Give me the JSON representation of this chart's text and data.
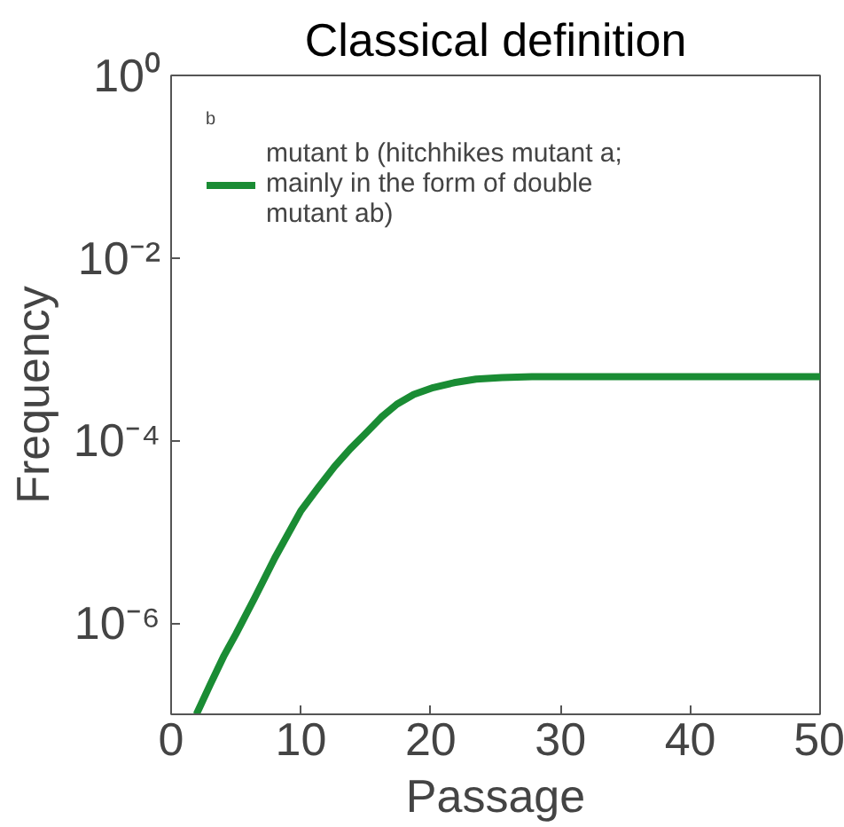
{
  "chart_data": {
    "type": "line",
    "title": "Classical definition",
    "xlabel": "Passage",
    "ylabel": "Frequency",
    "legend_title": "b",
    "log": "y",
    "legend": "top left",
    "xlim": [
      0,
      50
    ],
    "xticks": [
      0,
      10,
      20,
      30,
      40,
      50
    ],
    "ylim": [
      1e-07,
      1
    ],
    "yticks": [
      {
        "value": 1,
        "label": "10⁰"
      },
      {
        "value": 0.01,
        "label": "10⁻²"
      },
      {
        "value": 0.0001,
        "label": "10⁻⁴"
      },
      {
        "value": 1e-06,
        "label": "10⁻⁶"
      }
    ],
    "series": [
      {
        "name": "mutant b (hitchhikes mutant a; mainly in the form of double mutant ab)",
        "color": "#1a8c34",
        "x": [
          1.95,
          3.0,
          4.08,
          5.0,
          6.45,
          8.0,
          10.0,
          11.3,
          12.6,
          13.8,
          15.0,
          16.2,
          17.4,
          18.7,
          20.2,
          21.8,
          23.5,
          25.5,
          27.8,
          35,
          50
        ],
        "values": [
          1e-07,
          2.1e-07,
          4.4e-07,
          7.6e-07,
          1.9e-06,
          5.2e-06,
          1.7e-05,
          3e-05,
          5.2e-05,
          8.1e-05,
          0.00012,
          0.00018,
          0.00025,
          0.00032,
          0.00038,
          0.00043,
          0.00047,
          0.00049,
          0.0005,
          0.0005,
          0.0005
        ]
      }
    ]
  }
}
